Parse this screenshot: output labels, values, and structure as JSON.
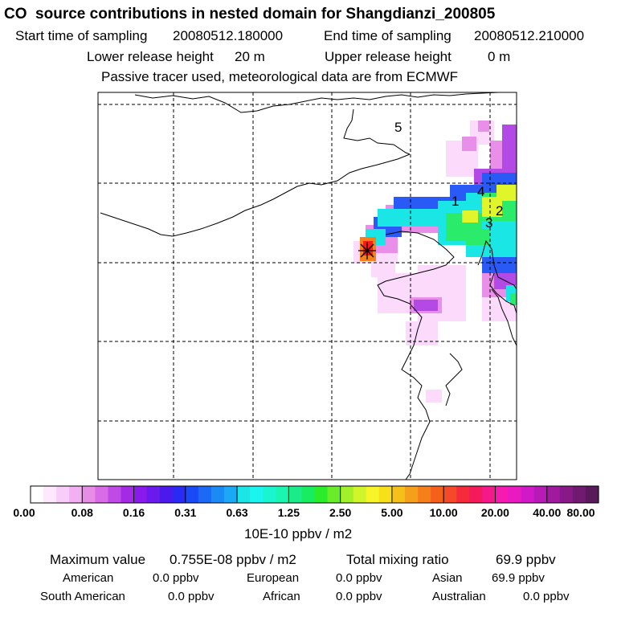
{
  "header": {
    "title": "CO  source contributions in nested domain for Shangdianzi_200805",
    "start_label": "Start time of sampling",
    "start_value": "20080512.180000",
    "end_label": "End time of sampling",
    "end_value": "20080512.210000",
    "lower_label": "Lower release height",
    "lower_value": "20 m",
    "upper_label": "Upper release height",
    "upper_value": "0 m",
    "tracer_note": "Passive tracer used, meteorological data are from ECMWF"
  },
  "map": {
    "location_labels": [
      "1",
      "2",
      "3",
      "4",
      "5"
    ],
    "receptor_marker": "star-marker",
    "plume_core_color": "#ff1a1a",
    "plume_edge_color": "#ff66ff"
  },
  "colorbar": {
    "tick_labels": [
      "0.00",
      "0.08",
      "0.16",
      "0.31",
      "0.63",
      "1.25",
      "2.50",
      "5.00",
      "10.00",
      "20.00",
      "40.00",
      "80.00"
    ],
    "unit_label": "10E-10 ppbv / m2",
    "colors": [
      "#ffffff",
      "#fde8fd",
      "#f8cdf8",
      "#f2b0f2",
      "#e68ee6",
      "#d96be6",
      "#bf4ae6",
      "#a52ae6",
      "#8a1aec",
      "#6a1aec",
      "#4a1aec",
      "#2a2af5",
      "#1a4af5",
      "#1a6af5",
      "#1a8af5",
      "#1aaaf5",
      "#1ae6e6",
      "#1af5f0",
      "#1af5d0",
      "#1af5b0",
      "#1aec8a",
      "#1aec60",
      "#2aec2a",
      "#6aec2a",
      "#a0f02a",
      "#d0f52a",
      "#f5f52a",
      "#f5e01a",
      "#f5c01a",
      "#f5a01a",
      "#f5801a",
      "#f5601a",
      "#f54a2a",
      "#f52a3a",
      "#f51a5a",
      "#f51a8a",
      "#f51ab0",
      "#e81ac0",
      "#d01ac8",
      "#b81ab8",
      "#a01aa0",
      "#881a88",
      "#701a70",
      "#581a58"
    ]
  },
  "summary": {
    "max_label": "Maximum value",
    "max_value": "0.755E-08 ppbv / m2",
    "total_label": "Total mixing ratio",
    "total_value": "69.9 ppbv",
    "regions": [
      {
        "name": "American",
        "value": "0.0 ppbv"
      },
      {
        "name": "European",
        "value": "0.0 ppbv"
      },
      {
        "name": "Asian",
        "value": "69.9 ppbv"
      },
      {
        "name": "South American",
        "value": "0.0 ppbv"
      },
      {
        "name": "African",
        "value": "0.0 ppbv"
      },
      {
        "name": "Australian",
        "value": "0.0 ppbv"
      }
    ]
  }
}
